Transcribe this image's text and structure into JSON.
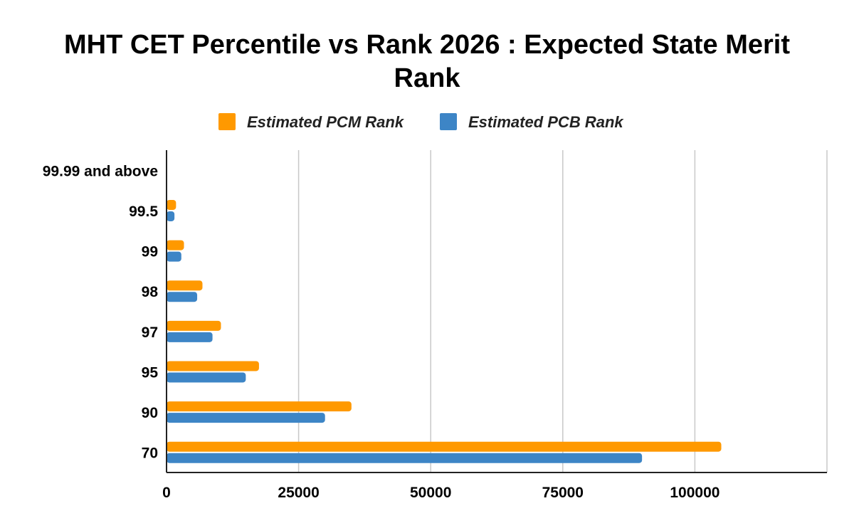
{
  "chart_data": {
    "type": "bar",
    "orientation": "horizontal",
    "title_line1": "MHT CET Percentile vs Rank 2026 : Expected State Merit",
    "title_line2": "Rank",
    "legend_position": "top",
    "categories": [
      "99.99 and above",
      "99.5",
      "99",
      "98",
      "97",
      "95",
      "90",
      "70"
    ],
    "series": [
      {
        "name": "Estimated PCM Rank",
        "color": "#ff9900",
        "values": [
          0,
          1800,
          3300,
          6800,
          10300,
          17500,
          35000,
          105000
        ]
      },
      {
        "name": "Estimated PCB Rank",
        "color": "#3d85c6",
        "values": [
          0,
          1500,
          2800,
          5800,
          8700,
          15000,
          30000,
          90000
        ]
      }
    ],
    "xlim": [
      0,
      125000
    ],
    "x_ticks": [
      {
        "value": 0,
        "label": "0"
      },
      {
        "value": 25000,
        "label": "25000"
      },
      {
        "value": 50000,
        "label": "50000"
      },
      {
        "value": 75000,
        "label": "75000"
      },
      {
        "value": 100000,
        "label": "100000"
      },
      {
        "value": 125000,
        "label": ""
      }
    ],
    "grid": true,
    "xlabel": "",
    "ylabel": ""
  }
}
